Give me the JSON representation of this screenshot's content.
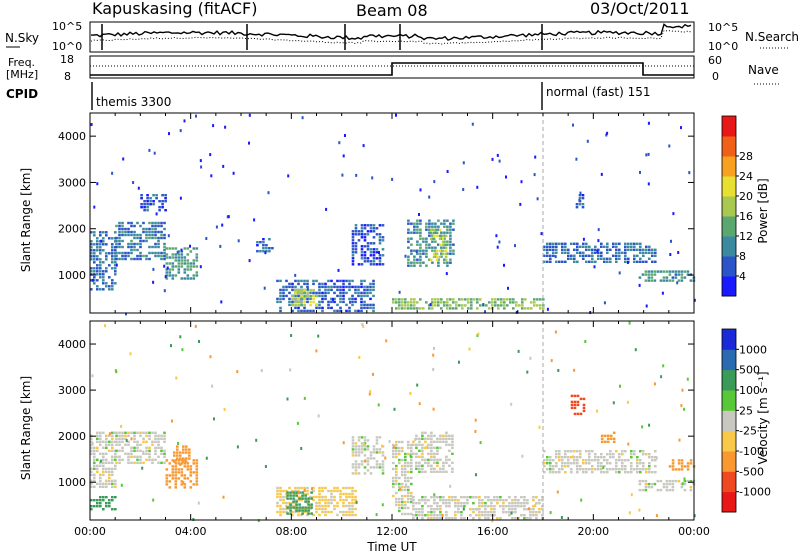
{
  "header": {
    "station": "Kapuskasing (fitACF)",
    "beam": "Beam 08",
    "date": "03/Oct/2011"
  },
  "top_panels": {
    "nsky_label": "N.Sky",
    "nsky_ticks": [
      "10^5",
      "10^0"
    ],
    "nsearch_label": "N.Search",
    "nsearch_ticks": [
      "10^5",
      "10^0"
    ],
    "freq_label_1": "Freq.",
    "freq_label_2": "[MHz]",
    "freq_ticks": [
      "18",
      "8"
    ],
    "nave_label": "Nave",
    "nave_ticks": [
      "60",
      "0"
    ],
    "cpid_label": "CPID",
    "cpid_entries": [
      {
        "label": "themis 3300",
        "start_hour": 0.0
      },
      {
        "label": "normal (fast) 151",
        "start_hour": 18.0
      }
    ]
  },
  "chart_data": [
    {
      "type": "heatmap",
      "name": "power_panel",
      "ylabel": "Slant Range [km]",
      "xlabel": "",
      "xlim_hours": [
        0,
        24
      ],
      "ylim": [
        180,
        4500
      ],
      "y_ticks": [
        "1000",
        "2000",
        "3000",
        "4000"
      ],
      "colorbar": {
        "label": "Power [dB]",
        "ticks": [
          "4",
          "8",
          "12",
          "16",
          "20",
          "24",
          "28"
        ],
        "colors": [
          "#1a1aff",
          "#2a54c8",
          "#3c8aa0",
          "#5aa870",
          "#a8c850",
          "#e8e030",
          "#f8a020",
          "#f06018",
          "#e81818"
        ]
      },
      "regions": [
        {
          "x0": 0.0,
          "x1": 1.0,
          "y0": 700,
          "y1": 1950,
          "v": 10
        },
        {
          "x0": 1.0,
          "x1": 3.0,
          "y0": 1350,
          "y1": 2150,
          "v": 11
        },
        {
          "x0": 3.0,
          "x1": 4.2,
          "y0": 900,
          "y1": 1600,
          "v": 14
        },
        {
          "x0": 2.0,
          "x1": 3.0,
          "y0": 2400,
          "y1": 2750,
          "v": 8
        },
        {
          "x0": 6.6,
          "x1": 7.2,
          "y0": 1500,
          "y1": 1800,
          "v": 9
        },
        {
          "x0": 7.4,
          "x1": 11.3,
          "y0": 250,
          "y1": 900,
          "v": 9
        },
        {
          "x0": 8.0,
          "x1": 9.0,
          "y0": 350,
          "y1": 700,
          "v": 20
        },
        {
          "x0": 10.4,
          "x1": 11.6,
          "y0": 1200,
          "y1": 2100,
          "v": 7
        },
        {
          "x0": 12.6,
          "x1": 14.4,
          "y0": 1200,
          "y1": 2200,
          "v": 12
        },
        {
          "x0": 13.5,
          "x1": 14.1,
          "y0": 1300,
          "y1": 2000,
          "v": 20
        },
        {
          "x0": 12.0,
          "x1": 18.0,
          "y0": 250,
          "y1": 500,
          "v": 18
        },
        {
          "x0": 18.0,
          "x1": 22.5,
          "y0": 1250,
          "y1": 1700,
          "v": 10
        },
        {
          "x0": 19.3,
          "x1": 19.6,
          "y0": 2450,
          "y1": 2750,
          "v": 9
        },
        {
          "x0": 21.8,
          "x1": 24.0,
          "y0": 850,
          "y1": 1100,
          "v": 13
        }
      ]
    },
    {
      "type": "heatmap",
      "name": "velocity_panel",
      "ylabel": "Slant Range [km]",
      "xlabel": "Time UT",
      "xlim_hours": [
        0,
        24
      ],
      "ylim": [
        180,
        4500
      ],
      "y_ticks": [
        "1000",
        "2000",
        "3000",
        "4000"
      ],
      "x_ticks": [
        "00:00",
        "04:00",
        "08:00",
        "12:00",
        "16:00",
        "20:00",
        "00:00"
      ],
      "colorbar": {
        "label": "Velocity [m s⁻¹]",
        "ticks": [
          "-1000",
          "-500",
          "-100",
          "-25",
          "25",
          "100",
          "500",
          "1000"
        ],
        "colors": [
          "#e81818",
          "#f04820",
          "#f89830",
          "#f8c848",
          "#c8c8c0",
          "#58c838",
          "#3a9a58",
          "#2a6ab0",
          "#1a2ad8"
        ]
      },
      "regions": [
        {
          "x0": 0.0,
          "x1": 1.0,
          "y0": 900,
          "y1": 2100,
          "v": 0
        },
        {
          "x0": 1.0,
          "x1": 3.0,
          "y0": 1400,
          "y1": 2100,
          "v": 0
        },
        {
          "x0": 3.0,
          "x1": 4.2,
          "y0": 900,
          "y1": 1500,
          "v": -200
        },
        {
          "x0": 3.3,
          "x1": 4.0,
          "y0": 1400,
          "y1": 1800,
          "v": -300
        },
        {
          "x0": 0.0,
          "x1": 1.0,
          "y0": 400,
          "y1": 700,
          "v": 150
        },
        {
          "x0": 7.4,
          "x1": 10.5,
          "y0": 300,
          "y1": 900,
          "v": -40
        },
        {
          "x0": 7.8,
          "x1": 8.8,
          "y0": 300,
          "y1": 800,
          "v": 150
        },
        {
          "x0": 10.4,
          "x1": 11.6,
          "y0": 1200,
          "y1": 2000,
          "v": 0
        },
        {
          "x0": 12.0,
          "x1": 12.8,
          "y0": 300,
          "y1": 1900,
          "v": 0
        },
        {
          "x0": 12.8,
          "x1": 14.4,
          "y0": 1200,
          "y1": 2100,
          "v": 0
        },
        {
          "x0": 12.8,
          "x1": 18.0,
          "y0": 200,
          "y1": 700,
          "v": 0
        },
        {
          "x0": 18.0,
          "x1": 22.5,
          "y0": 1200,
          "y1": 1700,
          "v": 0
        },
        {
          "x0": 19.1,
          "x1": 19.6,
          "y0": 2500,
          "y1": 2900,
          "v": -800
        },
        {
          "x0": 20.3,
          "x1": 20.8,
          "y0": 1900,
          "y1": 2100,
          "v": -400
        },
        {
          "x0": 21.8,
          "x1": 24.0,
          "y0": 850,
          "y1": 1050,
          "v": 0
        },
        {
          "x0": 23.0,
          "x1": 24.0,
          "y0": 1250,
          "y1": 1500,
          "v": -200
        }
      ]
    }
  ]
}
